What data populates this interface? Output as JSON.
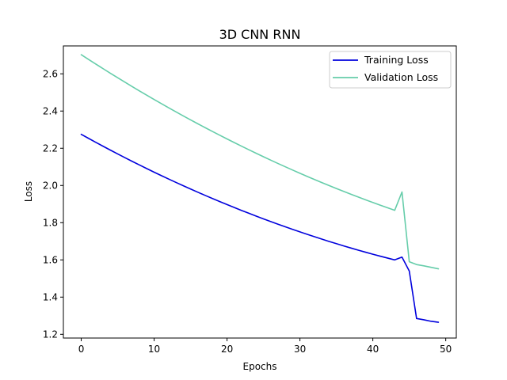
{
  "chart_data": {
    "type": "line",
    "title": "3D CNN RNN",
    "xlabel": "Epochs",
    "ylabel": "Loss",
    "xlim": [
      -2.45,
      51.45
    ],
    "ylim": [
      1.18,
      2.75
    ],
    "xticks": [
      0,
      10,
      20,
      30,
      40,
      50
    ],
    "yticks": [
      1.2,
      1.4,
      1.6,
      1.8,
      2.0,
      2.2,
      2.4,
      2.6
    ],
    "xtick_labels": [
      "0",
      "10",
      "20",
      "30",
      "40",
      "50"
    ],
    "ytick_labels": [
      "1.2",
      "1.4",
      "1.6",
      "1.8",
      "2.0",
      "2.2",
      "2.4",
      "2.6"
    ],
    "grid": false,
    "legend_position": "top-right",
    "x": [
      0,
      1,
      2,
      3,
      4,
      5,
      6,
      7,
      8,
      9,
      10,
      11,
      12,
      13,
      14,
      15,
      16,
      17,
      18,
      19,
      20,
      21,
      22,
      23,
      24,
      25,
      26,
      27,
      28,
      29,
      30,
      31,
      32,
      33,
      34,
      35,
      36,
      37,
      38,
      39,
      40,
      41,
      42,
      43,
      44,
      45,
      46,
      47,
      48,
      49
    ],
    "series": [
      {
        "name": "Training Loss",
        "color": "#0000dd",
        "values": [
          2.275,
          2.2532,
          2.2318,
          2.2107,
          2.1899,
          2.1694,
          2.1493,
          2.1294,
          2.1098,
          2.0905,
          2.0715,
          2.0528,
          2.0344,
          2.0163,
          1.9985,
          1.9809,
          1.9636,
          1.9466,
          1.9299,
          1.9135,
          1.8973,
          1.8814,
          1.8658,
          1.8504,
          1.8353,
          1.8205,
          1.806,
          1.7917,
          1.7777,
          1.764,
          1.7505,
          1.7373,
          1.7244,
          1.7117,
          1.6993,
          1.6872,
          1.6753,
          1.6637,
          1.6524,
          1.6414,
          1.6306,
          1.6201,
          1.6099,
          1.6,
          1.615,
          1.54,
          1.285,
          1.278,
          1.27,
          1.265
        ]
      },
      {
        "name": "Validation Loss",
        "color": "#66cdaa",
        "values": [
          2.703,
          2.6776,
          2.6525,
          2.6277,
          2.6031,
          2.5789,
          2.555,
          2.5313,
          2.508,
          2.4849,
          2.4621,
          2.4396,
          2.4174,
          2.3955,
          2.3739,
          2.3525,
          2.3315,
          2.3107,
          2.2902,
          2.27,
          2.25,
          2.2303,
          2.2109,
          2.1918,
          2.1729,
          2.1544,
          2.1361,
          2.118,
          2.1003,
          2.0828,
          2.0656,
          2.0486,
          2.032,
          2.0156,
          1.9995,
          1.9836,
          1.968,
          1.9527,
          1.9377,
          1.9229,
          1.9084,
          1.8942,
          1.8802,
          1.8665,
          1.965,
          1.59,
          1.575,
          1.568,
          1.56,
          1.552
        ]
      }
    ]
  }
}
